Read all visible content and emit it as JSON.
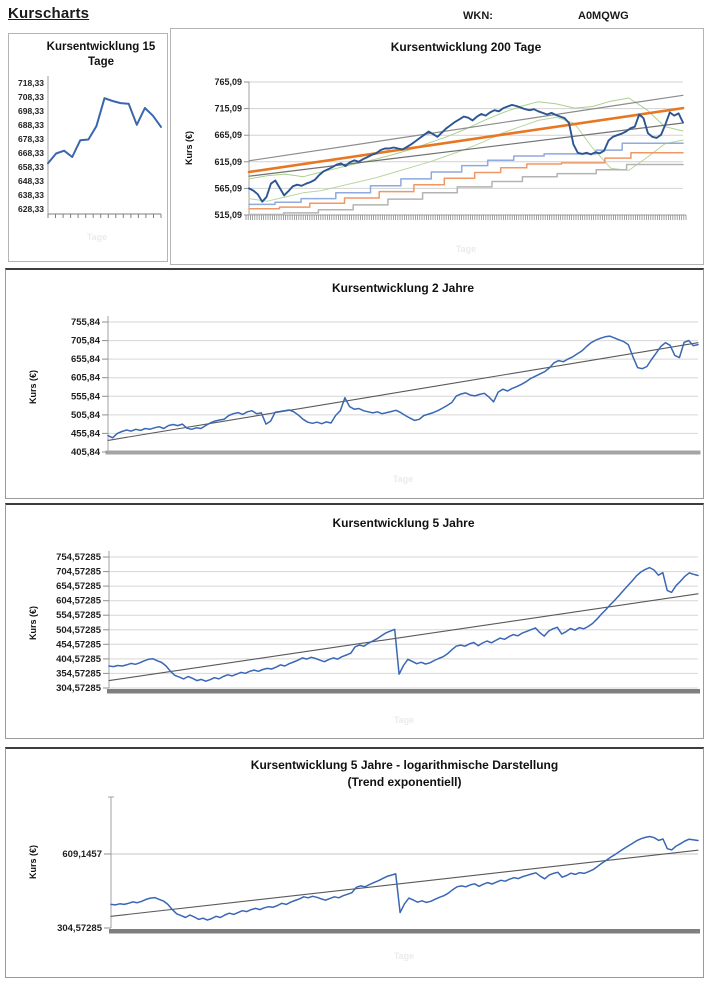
{
  "header": {
    "page_title": "Kurscharts",
    "wkn_label": "WKN:",
    "wkn_value": "A0MQWG"
  },
  "chart_data": [
    {
      "id": "kurs-15-tage",
      "type": "line",
      "title": "Kursentwicklung 15 Tage",
      "title_lines": [
        "Kursentwicklung 15",
        "Tage"
      ],
      "ylabel": "",
      "xlabel": "Tage",
      "ylim": [
        628.33,
        718.33
      ],
      "grid": false,
      "yticks": {
        "labels": [
          "718,33",
          "708,33",
          "698,33",
          "688,33",
          "678,33",
          "668,33",
          "658,33",
          "648,33",
          "638,33",
          "628,33"
        ],
        "values": [
          718.33,
          708.33,
          698.33,
          688.33,
          678.33,
          668.33,
          658.33,
          648.33,
          638.33,
          628.33
        ]
      },
      "series": [
        {
          "name": "Kurs",
          "kind": "line",
          "color": "#3a66ae",
          "width": 2,
          "values": [
            661,
            668,
            670,
            665.5,
            677.5,
            678,
            687.5,
            707.5,
            705.5,
            704,
            703.5,
            688.5,
            700.5,
            695,
            687
          ]
        }
      ]
    },
    {
      "id": "kurs-200-tage",
      "type": "line",
      "title": "Kursentwicklung 200 Tage",
      "ylabel": "Kurs (€)",
      "xlabel": "Tage",
      "ylim": [
        515.09,
        765.09
      ],
      "grid": true,
      "yticks": {
        "labels": [
          "765,09",
          "715,09",
          "665,09",
          "615,09",
          "565,09",
          "515,09"
        ],
        "values": [
          765.09,
          715.09,
          665.09,
          615.09,
          565.09,
          515.09
        ]
      },
      "series": [
        {
          "name": "Envelope oben",
          "kind": "line",
          "color": "#a9d08e",
          "width": 1,
          "values": [
            583,
            589,
            592,
            587,
            596,
            604,
            612,
            620,
            629,
            639,
            651,
            663,
            677,
            693,
            707,
            719,
            728,
            724,
            716,
            719,
            729,
            735,
            713,
            681,
            673
          ]
        },
        {
          "name": "Envelope unten",
          "kind": "line",
          "color": "#b5d69c",
          "width": 1,
          "values": [
            546,
            541,
            549,
            557,
            561,
            569,
            577,
            585,
            595,
            605,
            615,
            627,
            639,
            653,
            669,
            681,
            693,
            699,
            687,
            641,
            603,
            599,
            623,
            649,
            656
          ]
        },
        {
          "name": "Unterstuetzung grau",
          "kind": "steps",
          "color": "#b3b3b3",
          "width": 1.5,
          "points": [
            [
              0,
              516
            ],
            [
              0.08,
              519
            ],
            [
              0.16,
              525
            ],
            [
              0.24,
              534
            ],
            [
              0.32,
              545
            ],
            [
              0.4,
              557
            ],
            [
              0.48,
              568
            ],
            [
              0.56,
              578
            ],
            [
              0.63,
              587
            ],
            [
              0.71,
              593
            ],
            [
              0.8,
              600
            ],
            [
              0.87,
              610
            ]
          ]
        },
        {
          "name": "Unterstuetzung orange",
          "kind": "steps",
          "color": "#f09766",
          "width": 1.5,
          "points": [
            [
              0,
              527
            ],
            [
              0.07,
              530
            ],
            [
              0.14,
              537
            ],
            [
              0.22,
              547
            ],
            [
              0.3,
              559
            ],
            [
              0.38,
              572
            ],
            [
              0.45,
              584
            ],
            [
              0.52,
              595
            ],
            [
              0.58,
              604
            ],
            [
              0.64,
              611
            ],
            [
              0.72,
              613
            ],
            [
              0.82,
              622
            ],
            [
              0.88,
              632
            ]
          ]
        },
        {
          "name": "Unterstuetzung blau",
          "kind": "steps",
          "color": "#8faadc",
          "width": 1.5,
          "points": [
            [
              0,
              535
            ],
            [
              0.06,
              539
            ],
            [
              0.12,
              546
            ],
            [
              0.2,
              557
            ],
            [
              0.28,
              570
            ],
            [
              0.35,
              583
            ],
            [
              0.42,
              596
            ],
            [
              0.49,
              608
            ],
            [
              0.55,
              618
            ],
            [
              0.61,
              626
            ],
            [
              0.68,
              630
            ],
            [
              0.8,
              637
            ],
            [
              0.86,
              650
            ]
          ]
        },
        {
          "name": "Kanal oben",
          "kind": "straight",
          "color": "#8c8c8c",
          "width": 1.2,
          "values": [
            617,
            740
          ]
        },
        {
          "name": "Kanal unten",
          "kind": "straight",
          "color": "#707070",
          "width": 1.2,
          "values": [
            588,
            688
          ]
        },
        {
          "name": "Trend",
          "kind": "straight",
          "color": "#e87722",
          "width": 2.6,
          "values": [
            596,
            716
          ]
        },
        {
          "name": "Kurs",
          "kind": "line",
          "color": "#2b5693",
          "width": 1.9,
          "values": [
            565,
            561,
            554,
            540,
            549,
            574,
            580,
            566,
            552,
            560,
            569,
            572,
            570,
            574,
            577,
            581,
            590,
            597,
            601,
            605,
            610,
            612,
            607,
            614,
            618,
            615,
            620,
            624,
            628,
            631,
            637,
            640,
            640,
            642,
            640,
            638,
            643,
            648,
            654,
            660,
            666,
            672,
            667,
            662,
            670,
            678,
            684,
            690,
            695,
            700,
            698,
            693,
            700,
            705,
            702,
            708,
            712,
            710,
            716,
            719,
            722,
            720,
            717,
            714,
            712,
            714,
            710,
            707,
            704,
            707,
            703,
            700,
            697,
            688,
            648,
            632,
            630,
            632,
            629,
            633,
            631,
            636,
            655,
            662,
            665,
            668,
            672,
            678,
            681,
            704,
            697,
            669,
            662,
            660,
            666,
            686,
            708,
            702,
            706,
            689
          ]
        }
      ]
    },
    {
      "id": "kurs-2-jahre",
      "type": "line",
      "title": "Kursentwicklung 2 Jahre",
      "ylabel": "Kurs (€)",
      "xlabel": "Tage",
      "ylim": [
        405.84,
        755.84
      ],
      "grid": true,
      "yticks": {
        "labels": [
          "755,84",
          "705,84",
          "655,84",
          "605,84",
          "555,84",
          "505,84",
          "455,84",
          "405,84"
        ],
        "values": [
          755.84,
          705.84,
          655.84,
          605.84,
          555.84,
          505.84,
          455.84,
          405.84
        ]
      },
      "series": [
        {
          "name": "Trend",
          "kind": "straight",
          "color": "#595959",
          "width": 1.1,
          "values": [
            437,
            700
          ]
        },
        {
          "name": "Kurs",
          "kind": "line",
          "color": "#3a67b5",
          "width": 1.5,
          "values": [
            450,
            444,
            456,
            461,
            465,
            462,
            467,
            464,
            469,
            467,
            471,
            474,
            469,
            477,
            480,
            477,
            481,
            470,
            467,
            471,
            469,
            477,
            484,
            489,
            492,
            494,
            504,
            509,
            512,
            507,
            514,
            517,
            509,
            511,
            481,
            489,
            513,
            515,
            517,
            519,
            514,
            505,
            494,
            486,
            483,
            486,
            482,
            487,
            484,
            504,
            517,
            552,
            528,
            521,
            523,
            517,
            514,
            511,
            514,
            509,
            512,
            515,
            518,
            512,
            504,
            497,
            491,
            494,
            504,
            508,
            512,
            517,
            524,
            531,
            539,
            557,
            562,
            565,
            559,
            557,
            561,
            564,
            554,
            541,
            567,
            575,
            570,
            577,
            582,
            588,
            595,
            604,
            610,
            616,
            622,
            632,
            646,
            652,
            649,
            656,
            662,
            670,
            678,
            690,
            700,
            707,
            712,
            716,
            718,
            713,
            708,
            703,
            695,
            662,
            633,
            630,
            636,
            655,
            672,
            690,
            700,
            693,
            666,
            660,
            701,
            706,
            692,
            695
          ]
        }
      ]
    },
    {
      "id": "kurs-5-jahre",
      "type": "line",
      "title": "Kursentwicklung 5 Jahre",
      "ylabel": "Kurs (€)",
      "xlabel": "Tage",
      "ylim": [
        304.57285,
        754.57285
      ],
      "grid": true,
      "yticks": {
        "labels": [
          "754,57285",
          "704,57285",
          "654,57285",
          "604,57285",
          "554,57285",
          "504,57285",
          "454,57285",
          "404,57285",
          "354,57285",
          "304,57285"
        ],
        "values": [
          754.57285,
          704.57285,
          654.57285,
          604.57285,
          554.57285,
          504.57285,
          454.57285,
          404.57285,
          354.57285,
          304.57285
        ]
      },
      "series": [
        {
          "name": "Trend",
          "kind": "straight",
          "color": "#595959",
          "width": 1.1,
          "values": [
            330,
            628
          ]
        },
        {
          "name": "Kurs",
          "kind": "line",
          "color": "#3a67b5",
          "width": 1.5,
          "values": [
            380,
            378,
            382,
            380,
            384,
            389,
            386,
            391,
            398,
            403,
            405,
            398,
            392,
            380,
            362,
            348,
            342,
            336,
            344,
            338,
            330,
            334,
            328,
            333,
            340,
            336,
            344,
            350,
            346,
            352,
            358,
            355,
            362,
            366,
            362,
            368,
            372,
            370,
            376,
            384,
            380,
            388,
            394,
            400,
            408,
            404,
            410,
            406,
            400,
            395,
            402,
            408,
            404,
            412,
            418,
            424,
            446,
            452,
            448,
            458,
            466,
            474,
            484,
            494,
            500,
            506,
            352,
            382,
            403,
            396,
            388,
            393,
            387,
            391,
            399,
            406,
            412,
            422,
            436,
            448,
            452,
            448,
            456,
            461,
            450,
            459,
            466,
            460,
            468,
            476,
            472,
            481,
            488,
            484,
            493,
            499,
            505,
            511,
            495,
            483,
            500,
            508,
            513,
            490,
            498,
            509,
            503,
            512,
            508,
            516,
            526,
            541,
            558,
            573,
            590,
            605,
            622,
            639,
            656,
            672,
            690,
            703,
            712,
            718,
            710,
            692,
            701,
            640,
            633,
            656,
            671,
            688,
            700,
            695,
            691
          ]
        }
      ]
    },
    {
      "id": "kurs-5-jahre-log",
      "type": "line",
      "title": "Kursentwicklung 5 Jahre - logarithmische Darstellung (Trend exponentiell)",
      "title_lines": [
        "Kursentwicklung 5 Jahre - logarithmische Darstellung",
        "(Trend exponentiell)"
      ],
      "ylabel": "Kurs (€)",
      "xlabel": "Tage",
      "scale": "log",
      "ylim": [
        304.57285,
        1010
      ],
      "grid": "partial",
      "grid_values": [
        609.1457
      ],
      "yticks": {
        "labels": [
          "609,1457",
          "304,57285"
        ],
        "values": [
          609.1457,
          304.57285
        ]
      },
      "series": [
        {
          "name": "Trend exponentiell",
          "kind": "straight",
          "color": "#595959",
          "width": 1.1,
          "values": [
            340,
            631
          ]
        },
        {
          "name": "Kurs",
          "kind": "line",
          "color": "#3a67b5",
          "width": 1.5,
          "values": [
            380,
            378,
            382,
            380,
            384,
            389,
            386,
            391,
            398,
            403,
            405,
            398,
            392,
            380,
            362,
            348,
            342,
            336,
            344,
            338,
            330,
            334,
            328,
            333,
            340,
            336,
            344,
            350,
            346,
            352,
            358,
            355,
            362,
            366,
            362,
            368,
            372,
            370,
            376,
            384,
            380,
            388,
            394,
            400,
            408,
            404,
            410,
            406,
            400,
            395,
            402,
            408,
            404,
            412,
            418,
            424,
            446,
            452,
            448,
            458,
            466,
            474,
            484,
            494,
            500,
            506,
            352,
            382,
            403,
            396,
            388,
            393,
            387,
            391,
            399,
            406,
            412,
            422,
            436,
            448,
            452,
            448,
            456,
            461,
            450,
            459,
            466,
            460,
            468,
            476,
            472,
            481,
            488,
            484,
            493,
            499,
            505,
            511,
            495,
            483,
            500,
            508,
            513,
            490,
            498,
            509,
            503,
            512,
            508,
            516,
            526,
            541,
            558,
            573,
            590,
            605,
            622,
            639,
            656,
            672,
            690,
            703,
            712,
            718,
            710,
            692,
            701,
            640,
            633,
            656,
            671,
            688,
            700,
            695,
            691
          ]
        }
      ]
    }
  ]
}
